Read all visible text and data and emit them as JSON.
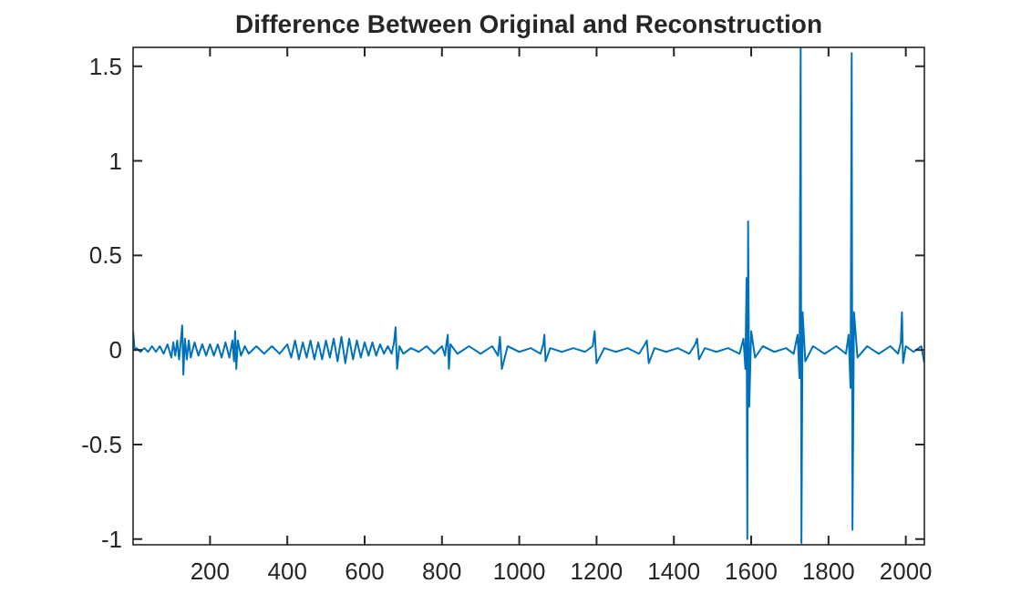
{
  "chart_data": {
    "type": "line",
    "title": "Difference Between Original and Reconstruction",
    "xlim": [
      1,
      2048
    ],
    "xticks": [
      200,
      400,
      600,
      800,
      1000,
      1200,
      1400,
      1600,
      1800,
      2000
    ],
    "ylim": [
      -1.03,
      1.6
    ],
    "yticks": [
      -1,
      -0.5,
      0,
      0.5,
      1,
      1.5
    ],
    "grid": false,
    "series": [
      {
        "color": "#0072bd",
        "x": [
          1,
          5,
          10,
          20,
          30,
          40,
          50,
          60,
          70,
          80,
          90,
          100,
          105,
          110,
          115,
          120,
          125,
          128,
          131,
          135,
          140,
          145,
          150,
          160,
          170,
          180,
          190,
          200,
          210,
          220,
          230,
          240,
          250,
          258,
          262,
          265,
          268,
          272,
          280,
          290,
          300,
          320,
          340,
          360,
          380,
          400,
          410,
          420,
          430,
          440,
          450,
          460,
          470,
          480,
          490,
          500,
          510,
          520,
          530,
          540,
          550,
          560,
          570,
          580,
          590,
          600,
          610,
          620,
          630,
          640,
          650,
          660,
          670,
          676,
          680,
          684,
          690,
          700,
          720,
          740,
          760,
          780,
          800,
          808,
          812,
          815,
          818,
          822,
          840,
          870,
          900,
          930,
          945,
          950,
          955,
          970,
          1000,
          1030,
          1055,
          1062,
          1065,
          1068,
          1080,
          1110,
          1140,
          1170,
          1190,
          1195,
          1200,
          1220,
          1250,
          1280,
          1310,
          1325,
          1330,
          1335,
          1350,
          1380,
          1410,
          1440,
          1455,
          1460,
          1465,
          1480,
          1510,
          1540,
          1570,
          1580,
          1585,
          1588,
          1590,
          1592,
          1595,
          1600,
          1610,
          1630,
          1660,
          1690,
          1710,
          1720,
          1725,
          1728,
          1730,
          1733,
          1740,
          1760,
          1790,
          1820,
          1845,
          1852,
          1857,
          1860,
          1862,
          1866,
          1875,
          1900,
          1930,
          1960,
          1980,
          1987,
          1990,
          1993,
          2000,
          2020,
          2040,
          2048
        ],
        "values": [
          0.1,
          0.0,
          0.01,
          -0.01,
          0.01,
          -0.01,
          0.02,
          -0.01,
          0.02,
          -0.02,
          0.03,
          -0.04,
          0.04,
          -0.03,
          0.05,
          -0.05,
          0.06,
          0.13,
          -0.13,
          0.06,
          -0.05,
          0.05,
          -0.04,
          0.04,
          -0.03,
          0.03,
          -0.03,
          0.03,
          -0.03,
          0.03,
          -0.04,
          0.04,
          -0.04,
          0.05,
          -0.06,
          0.1,
          -0.1,
          0.05,
          -0.03,
          0.02,
          -0.02,
          0.02,
          -0.02,
          0.02,
          -0.02,
          0.03,
          -0.04,
          0.05,
          -0.05,
          0.04,
          -0.04,
          0.05,
          -0.05,
          0.04,
          -0.05,
          0.05,
          -0.04,
          0.06,
          -0.06,
          0.07,
          -0.07,
          0.06,
          -0.05,
          0.05,
          -0.04,
          0.04,
          -0.03,
          0.04,
          -0.03,
          0.03,
          -0.02,
          0.02,
          -0.02,
          0.04,
          0.12,
          -0.1,
          0.02,
          -0.02,
          0.01,
          -0.01,
          0.02,
          -0.02,
          0.02,
          -0.03,
          0.04,
          0.08,
          -0.1,
          0.03,
          -0.02,
          0.02,
          -0.02,
          0.02,
          -0.03,
          0.07,
          -0.1,
          0.02,
          -0.01,
          0.01,
          -0.02,
          0.03,
          0.08,
          -0.06,
          0.01,
          -0.01,
          0.01,
          -0.01,
          0.02,
          0.1,
          -0.07,
          0.01,
          -0.01,
          0.01,
          -0.02,
          0.03,
          0.05,
          -0.07,
          0.01,
          -0.01,
          0.01,
          -0.02,
          0.03,
          0.06,
          -0.05,
          0.01,
          -0.01,
          0.01,
          -0.02,
          0.06,
          -0.1,
          0.38,
          -1.0,
          0.68,
          -0.3,
          0.1,
          -0.04,
          0.02,
          -0.01,
          0.01,
          -0.02,
          0.08,
          -0.15,
          1.6,
          -1.02,
          0.2,
          -0.06,
          0.02,
          -0.02,
          0.02,
          -0.02,
          0.08,
          -0.2,
          1.57,
          -0.95,
          0.2,
          -0.04,
          0.02,
          -0.02,
          0.02,
          -0.02,
          0.04,
          0.2,
          -0.07,
          0.02,
          -0.01,
          0.02,
          -0.07
        ]
      }
    ]
  }
}
